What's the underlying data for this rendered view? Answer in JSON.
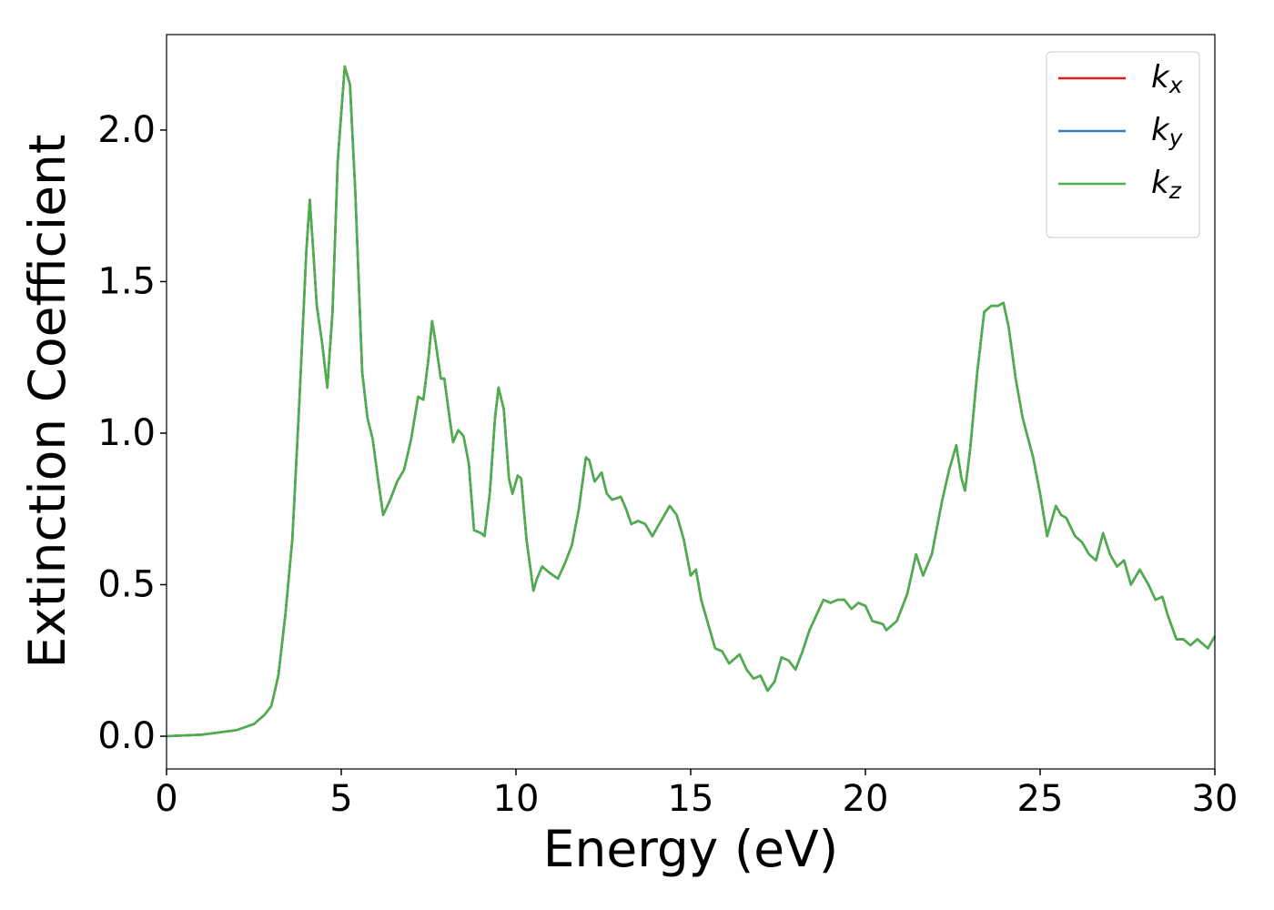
{
  "chart_data": {
    "type": "line",
    "x_label": "Energy (eV)",
    "y_label": "Extinction Coefficient",
    "xlim": [
      0,
      30
    ],
    "ylim": [
      -0.108,
      2.315
    ],
    "xticks": [
      0,
      5,
      10,
      15,
      20,
      25,
      30
    ],
    "yticks": [
      {
        "value": 0,
        "label": "0.0"
      },
      {
        "value": 0.5,
        "label": "0.5"
      },
      {
        "value": 1,
        "label": "1.0"
      },
      {
        "value": 1.5,
        "label": "1.5"
      },
      {
        "value": 2,
        "label": "2.0"
      }
    ],
    "grid": false,
    "legend": "upper right",
    "x": [
      0,
      1,
      2,
      2.5,
      2.8,
      3.0,
      3.2,
      3.4,
      3.6,
      3.8,
      4.0,
      4.1,
      4.2,
      4.3,
      4.45,
      4.6,
      4.75,
      4.9,
      5.1,
      5.25,
      5.4,
      5.6,
      5.75,
      5.9,
      6.05,
      6.2,
      6.4,
      6.6,
      6.8,
      7.0,
      7.2,
      7.35,
      7.5,
      7.6,
      7.7,
      7.85,
      7.95,
      8.1,
      8.2,
      8.35,
      8.5,
      8.65,
      8.8,
      9.0,
      9.1,
      9.25,
      9.4,
      9.5,
      9.65,
      9.8,
      9.9,
      10.05,
      10.15,
      10.3,
      10.5,
      10.6,
      10.75,
      10.95,
      11.2,
      11.4,
      11.6,
      11.8,
      12.0,
      12.1,
      12.25,
      12.45,
      12.6,
      12.75,
      13.0,
      13.15,
      13.3,
      13.5,
      13.7,
      13.9,
      14.1,
      14.4,
      14.6,
      14.8,
      15.0,
      15.15,
      15.3,
      15.5,
      15.7,
      15.9,
      16.1,
      16.4,
      16.6,
      16.8,
      17.0,
      17.2,
      17.4,
      17.6,
      17.8,
      18.0,
      18.2,
      18.4,
      18.6,
      18.8,
      19.0,
      19.2,
      19.4,
      19.6,
      19.8,
      20.0,
      20.2,
      20.5,
      20.6,
      20.9,
      21.2,
      21.45,
      21.65,
      21.9,
      22.2,
      22.4,
      22.6,
      22.75,
      22.85,
      23.0,
      23.2,
      23.4,
      23.6,
      23.8,
      23.95,
      24.1,
      24.3,
      24.5,
      24.8,
      25.0,
      25.2,
      25.45,
      25.6,
      25.75,
      26.0,
      26.2,
      26.4,
      26.6,
      26.8,
      27.0,
      27.2,
      27.4,
      27.6,
      27.85,
      28.1,
      28.3,
      28.5,
      28.65,
      28.9,
      29.1,
      29.3,
      29.5,
      29.8,
      30.0
    ],
    "series": [
      {
        "name": "k_x",
        "color": "#e41a1c",
        "values": [
          0,
          0.005,
          0.02,
          0.04,
          0.07,
          0.1,
          0.2,
          0.4,
          0.65,
          1.1,
          1.6,
          1.77,
          1.6,
          1.42,
          1.3,
          1.15,
          1.4,
          1.9,
          2.21,
          2.15,
          1.8,
          1.2,
          1.05,
          0.98,
          0.85,
          0.73,
          0.78,
          0.84,
          0.88,
          0.98,
          1.12,
          1.11,
          1.25,
          1.37,
          1.3,
          1.18,
          1.18,
          1.05,
          0.97,
          1.01,
          0.99,
          0.9,
          0.68,
          0.67,
          0.66,
          0.8,
          1.05,
          1.15,
          1.08,
          0.85,
          0.8,
          0.86,
          0.85,
          0.65,
          0.48,
          0.52,
          0.56,
          0.54,
          0.52,
          0.57,
          0.63,
          0.75,
          0.92,
          0.91,
          0.84,
          0.87,
          0.8,
          0.78,
          0.79,
          0.75,
          0.7,
          0.71,
          0.7,
          0.66,
          0.7,
          0.76,
          0.73,
          0.65,
          0.53,
          0.55,
          0.45,
          0.37,
          0.29,
          0.28,
          0.24,
          0.27,
          0.22,
          0.19,
          0.2,
          0.15,
          0.18,
          0.26,
          0.25,
          0.22,
          0.28,
          0.35,
          0.4,
          0.45,
          0.44,
          0.45,
          0.45,
          0.42,
          0.44,
          0.43,
          0.38,
          0.37,
          0.35,
          0.38,
          0.47,
          0.6,
          0.53,
          0.6,
          0.78,
          0.88,
          0.96,
          0.85,
          0.81,
          0.95,
          1.2,
          1.4,
          1.42,
          1.42,
          1.43,
          1.35,
          1.18,
          1.05,
          0.92,
          0.8,
          0.66,
          0.76,
          0.73,
          0.72,
          0.66,
          0.64,
          0.6,
          0.58,
          0.67,
          0.6,
          0.56,
          0.58,
          0.5,
          0.55,
          0.5,
          0.45,
          0.46,
          0.4,
          0.32,
          0.32,
          0.3,
          0.32,
          0.29,
          0.33
        ]
      },
      {
        "name": "k_y",
        "color": "#377eb8",
        "values": [
          0,
          0.005,
          0.02,
          0.04,
          0.07,
          0.1,
          0.2,
          0.4,
          0.65,
          1.1,
          1.6,
          1.77,
          1.6,
          1.42,
          1.3,
          1.15,
          1.4,
          1.9,
          2.21,
          2.15,
          1.8,
          1.2,
          1.05,
          0.98,
          0.85,
          0.73,
          0.78,
          0.84,
          0.88,
          0.98,
          1.12,
          1.11,
          1.25,
          1.37,
          1.3,
          1.18,
          1.18,
          1.05,
          0.97,
          1.01,
          0.99,
          0.9,
          0.68,
          0.67,
          0.66,
          0.8,
          1.05,
          1.15,
          1.08,
          0.85,
          0.8,
          0.86,
          0.85,
          0.65,
          0.48,
          0.52,
          0.56,
          0.54,
          0.52,
          0.57,
          0.63,
          0.75,
          0.92,
          0.91,
          0.84,
          0.87,
          0.8,
          0.78,
          0.79,
          0.75,
          0.7,
          0.71,
          0.7,
          0.66,
          0.7,
          0.76,
          0.73,
          0.65,
          0.53,
          0.55,
          0.45,
          0.37,
          0.29,
          0.28,
          0.24,
          0.27,
          0.22,
          0.19,
          0.2,
          0.15,
          0.18,
          0.26,
          0.25,
          0.22,
          0.28,
          0.35,
          0.4,
          0.45,
          0.44,
          0.45,
          0.45,
          0.42,
          0.44,
          0.43,
          0.38,
          0.37,
          0.35,
          0.38,
          0.47,
          0.6,
          0.53,
          0.6,
          0.78,
          0.88,
          0.96,
          0.85,
          0.81,
          0.95,
          1.2,
          1.4,
          1.42,
          1.42,
          1.43,
          1.35,
          1.18,
          1.05,
          0.92,
          0.8,
          0.66,
          0.76,
          0.73,
          0.72,
          0.66,
          0.64,
          0.6,
          0.58,
          0.67,
          0.6,
          0.56,
          0.58,
          0.5,
          0.55,
          0.5,
          0.45,
          0.46,
          0.4,
          0.32,
          0.32,
          0.3,
          0.32,
          0.29,
          0.33
        ]
      },
      {
        "name": "k_z",
        "color": "#4daf4a",
        "values": [
          0,
          0.005,
          0.02,
          0.04,
          0.07,
          0.1,
          0.2,
          0.4,
          0.65,
          1.1,
          1.6,
          1.77,
          1.6,
          1.42,
          1.3,
          1.15,
          1.4,
          1.9,
          2.21,
          2.15,
          1.8,
          1.2,
          1.05,
          0.98,
          0.85,
          0.73,
          0.78,
          0.84,
          0.88,
          0.98,
          1.12,
          1.11,
          1.25,
          1.37,
          1.3,
          1.18,
          1.18,
          1.05,
          0.97,
          1.01,
          0.99,
          0.9,
          0.68,
          0.67,
          0.66,
          0.8,
          1.05,
          1.15,
          1.08,
          0.85,
          0.8,
          0.86,
          0.85,
          0.65,
          0.48,
          0.52,
          0.56,
          0.54,
          0.52,
          0.57,
          0.63,
          0.75,
          0.92,
          0.91,
          0.84,
          0.87,
          0.8,
          0.78,
          0.79,
          0.75,
          0.7,
          0.71,
          0.7,
          0.66,
          0.7,
          0.76,
          0.73,
          0.65,
          0.53,
          0.55,
          0.45,
          0.37,
          0.29,
          0.28,
          0.24,
          0.27,
          0.22,
          0.19,
          0.2,
          0.15,
          0.18,
          0.26,
          0.25,
          0.22,
          0.28,
          0.35,
          0.4,
          0.45,
          0.44,
          0.45,
          0.45,
          0.42,
          0.44,
          0.43,
          0.38,
          0.37,
          0.35,
          0.38,
          0.47,
          0.6,
          0.53,
          0.6,
          0.78,
          0.88,
          0.96,
          0.85,
          0.81,
          0.95,
          1.2,
          1.4,
          1.42,
          1.42,
          1.43,
          1.35,
          1.18,
          1.05,
          0.92,
          0.8,
          0.66,
          0.76,
          0.73,
          0.72,
          0.66,
          0.64,
          0.6,
          0.58,
          0.67,
          0.6,
          0.56,
          0.58,
          0.5,
          0.55,
          0.5,
          0.45,
          0.46,
          0.4,
          0.32,
          0.32,
          0.3,
          0.32,
          0.29,
          0.33
        ]
      }
    ]
  }
}
